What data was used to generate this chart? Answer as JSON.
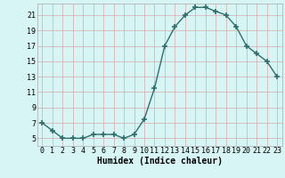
{
  "x": [
    0,
    1,
    2,
    3,
    4,
    5,
    6,
    7,
    8,
    9,
    10,
    11,
    12,
    13,
    14,
    15,
    16,
    17,
    18,
    19,
    20,
    21,
    22,
    23
  ],
  "y": [
    7,
    6,
    5,
    5,
    5,
    5.5,
    5.5,
    5.5,
    5,
    5.5,
    7.5,
    11.5,
    17,
    19.5,
    21,
    22,
    22,
    21.5,
    21,
    19.5,
    17,
    16,
    15,
    13
  ],
  "line_color": "#2d6e6e",
  "marker": "+",
  "marker_size": 4,
  "bg_color": "#d8f5f5",
  "grid_color": "#c8e8e8",
  "xlabel": "Humidex (Indice chaleur)",
  "xlim": [
    -0.5,
    23.5
  ],
  "ylim": [
    4,
    22.5
  ],
  "yticks": [
    5,
    7,
    9,
    11,
    13,
    15,
    17,
    19,
    21
  ],
  "xticks": [
    0,
    1,
    2,
    3,
    4,
    5,
    6,
    7,
    8,
    9,
    10,
    11,
    12,
    13,
    14,
    15,
    16,
    17,
    18,
    19,
    20,
    21,
    22,
    23
  ],
  "tick_fontsize": 6,
  "xlabel_fontsize": 7,
  "line_width": 1.0,
  "spine_color": "#aaaaaa"
}
